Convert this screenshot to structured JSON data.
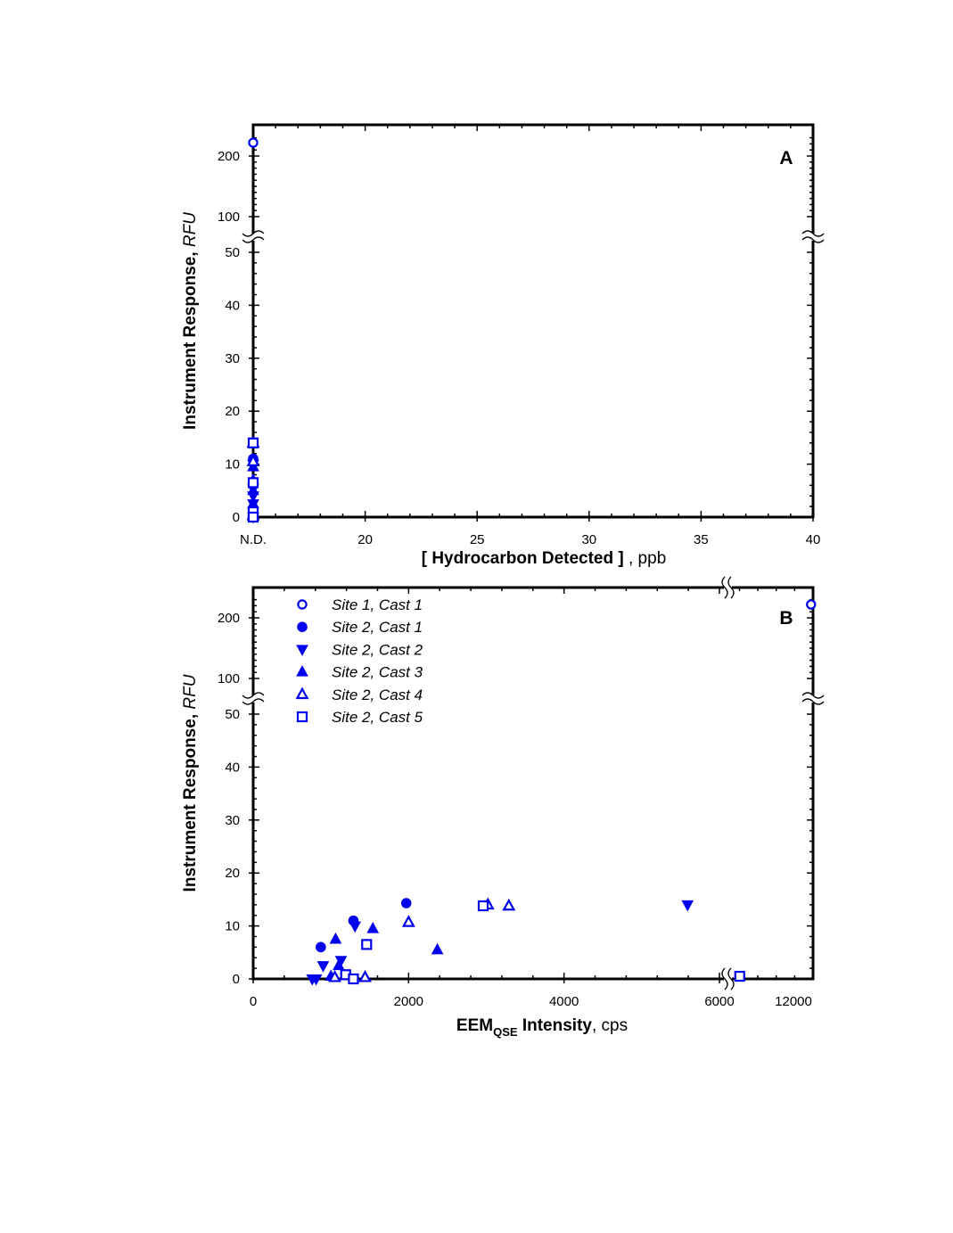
{
  "colors": {
    "marker": "#0000ee",
    "axis": "#000000"
  },
  "chart_data": [
    {
      "panel": "A",
      "type": "scatter",
      "xlabel": {
        "bold": "[ Hydrocarbon Detected ]",
        "normal": " , ppb"
      },
      "ylabel": {
        "normal": "Instrument Response, ",
        "italic": "RFU"
      },
      "x_ticks": [
        {
          "v": 15,
          "label": "N.D."
        },
        {
          "v": 20,
          "label": "20"
        },
        {
          "v": 25,
          "label": "25"
        },
        {
          "v": 30,
          "label": "30"
        },
        {
          "v": 35,
          "label": "35"
        },
        {
          "v": 40,
          "label": "40"
        }
      ],
      "xlim": [
        15,
        40
      ],
      "y_ticks_lower": [
        "0",
        "10",
        "20",
        "30",
        "40",
        "50"
      ],
      "y_ticks_upper": [
        "100",
        "200"
      ],
      "ylim_lower": [
        0,
        50
      ],
      "ylim_upper": [
        100,
        230
      ],
      "y_axis_break": [
        50,
        100
      ],
      "legend": "none",
      "series": [
        {
          "name": "Site 1, Cast 1",
          "marker": "circle-open",
          "points": [
            [
              15,
              222
            ]
          ]
        },
        {
          "name": "Site 2, Cast 1",
          "marker": "circle-filled",
          "points": [
            [
              15,
              14
            ],
            [
              15,
              11
            ],
            [
              15,
              6
            ]
          ]
        },
        {
          "name": "Site 2, Cast 2",
          "marker": "triangle-down-filled",
          "points": [
            [
              15,
              10
            ],
            [
              15,
              4
            ],
            [
              15,
              2.5
            ],
            [
              15,
              0
            ]
          ]
        },
        {
          "name": "Site 2, Cast 3",
          "marker": "triangle-up-filled",
          "points": [
            [
              15,
              9.5
            ],
            [
              15,
              7
            ],
            [
              15,
              5
            ],
            [
              15,
              2.5
            ],
            [
              15,
              0.5
            ]
          ]
        },
        {
          "name": "Site 2, Cast 4",
          "marker": "triangle-up-open",
          "points": [
            [
              15,
              14
            ],
            [
              15,
              10.5
            ],
            [
              15,
              0.3
            ]
          ]
        },
        {
          "name": "Site 2, Cast 5",
          "marker": "square-open",
          "points": [
            [
              15,
              14
            ],
            [
              15,
              6.5
            ],
            [
              15,
              1
            ],
            [
              15,
              0
            ]
          ]
        }
      ]
    },
    {
      "panel": "B",
      "type": "scatter",
      "xlabel": {
        "bold": "EEM",
        "sub": "QSE",
        "bold2": " Intensity",
        "normal": ", cps"
      },
      "ylabel": {
        "normal": "Instrument Response, ",
        "italic": "RFU"
      },
      "x_ticks_lower": [
        {
          "v": 0,
          "label": "0"
        },
        {
          "v": 2000,
          "label": "2000"
        },
        {
          "v": 4000,
          "label": "4000"
        },
        {
          "v": 6000,
          "label": "6000"
        }
      ],
      "x_ticks_upper": [
        {
          "v": 12000,
          "label": "12000"
        }
      ],
      "xlim_lower": [
        0,
        6000
      ],
      "xlim_upper": [
        6300,
        12000
      ],
      "x_axis_break": [
        6000,
        6300
      ],
      "y_ticks_lower": [
        "0",
        "10",
        "20",
        "30",
        "40",
        "50"
      ],
      "y_ticks_upper": [
        "100",
        "200"
      ],
      "ylim_lower": [
        0,
        50
      ],
      "ylim_upper": [
        100,
        230
      ],
      "y_axis_break": [
        50,
        100
      ],
      "legend": "top-left",
      "series": [
        {
          "name": "Site 1, Cast 1",
          "marker": "circle-open",
          "points": [
            [
              11850,
              222
            ]
          ]
        },
        {
          "name": "Site 2, Cast 1",
          "marker": "circle-filled",
          "points": [
            [
              870,
              6
            ],
            [
              1290,
              11
            ],
            [
              1970,
              14.3
            ]
          ]
        },
        {
          "name": "Site 2, Cast 2",
          "marker": "triangle-down-filled",
          "points": [
            [
              760,
              0
            ],
            [
              810,
              0
            ],
            [
              900,
              2.5
            ],
            [
              1130,
              3.5
            ],
            [
              1310,
              10
            ],
            [
              5590,
              14
            ]
          ]
        },
        {
          "name": "Site 2, Cast 3",
          "marker": "triangle-up-filled",
          "points": [
            [
              1000,
              0.5
            ],
            [
              1060,
              7.5
            ],
            [
              1100,
              2.5
            ],
            [
              1540,
              9.5
            ],
            [
              2370,
              5.5
            ]
          ]
        },
        {
          "name": "Site 2, Cast 4",
          "marker": "triangle-up-open",
          "points": [
            [
              1050,
              0.3
            ],
            [
              1440,
              0.3
            ],
            [
              2000,
              10.7
            ],
            [
              3020,
              14
            ],
            [
              3290,
              13.8
            ]
          ]
        },
        {
          "name": "Site 2, Cast 5",
          "marker": "square-open",
          "points": [
            [
              1190,
              0.8
            ],
            [
              1290,
              0
            ],
            [
              1460,
              6.5
            ],
            [
              2960,
              13.8
            ],
            [
              6420,
              0.5
            ]
          ]
        }
      ]
    }
  ]
}
